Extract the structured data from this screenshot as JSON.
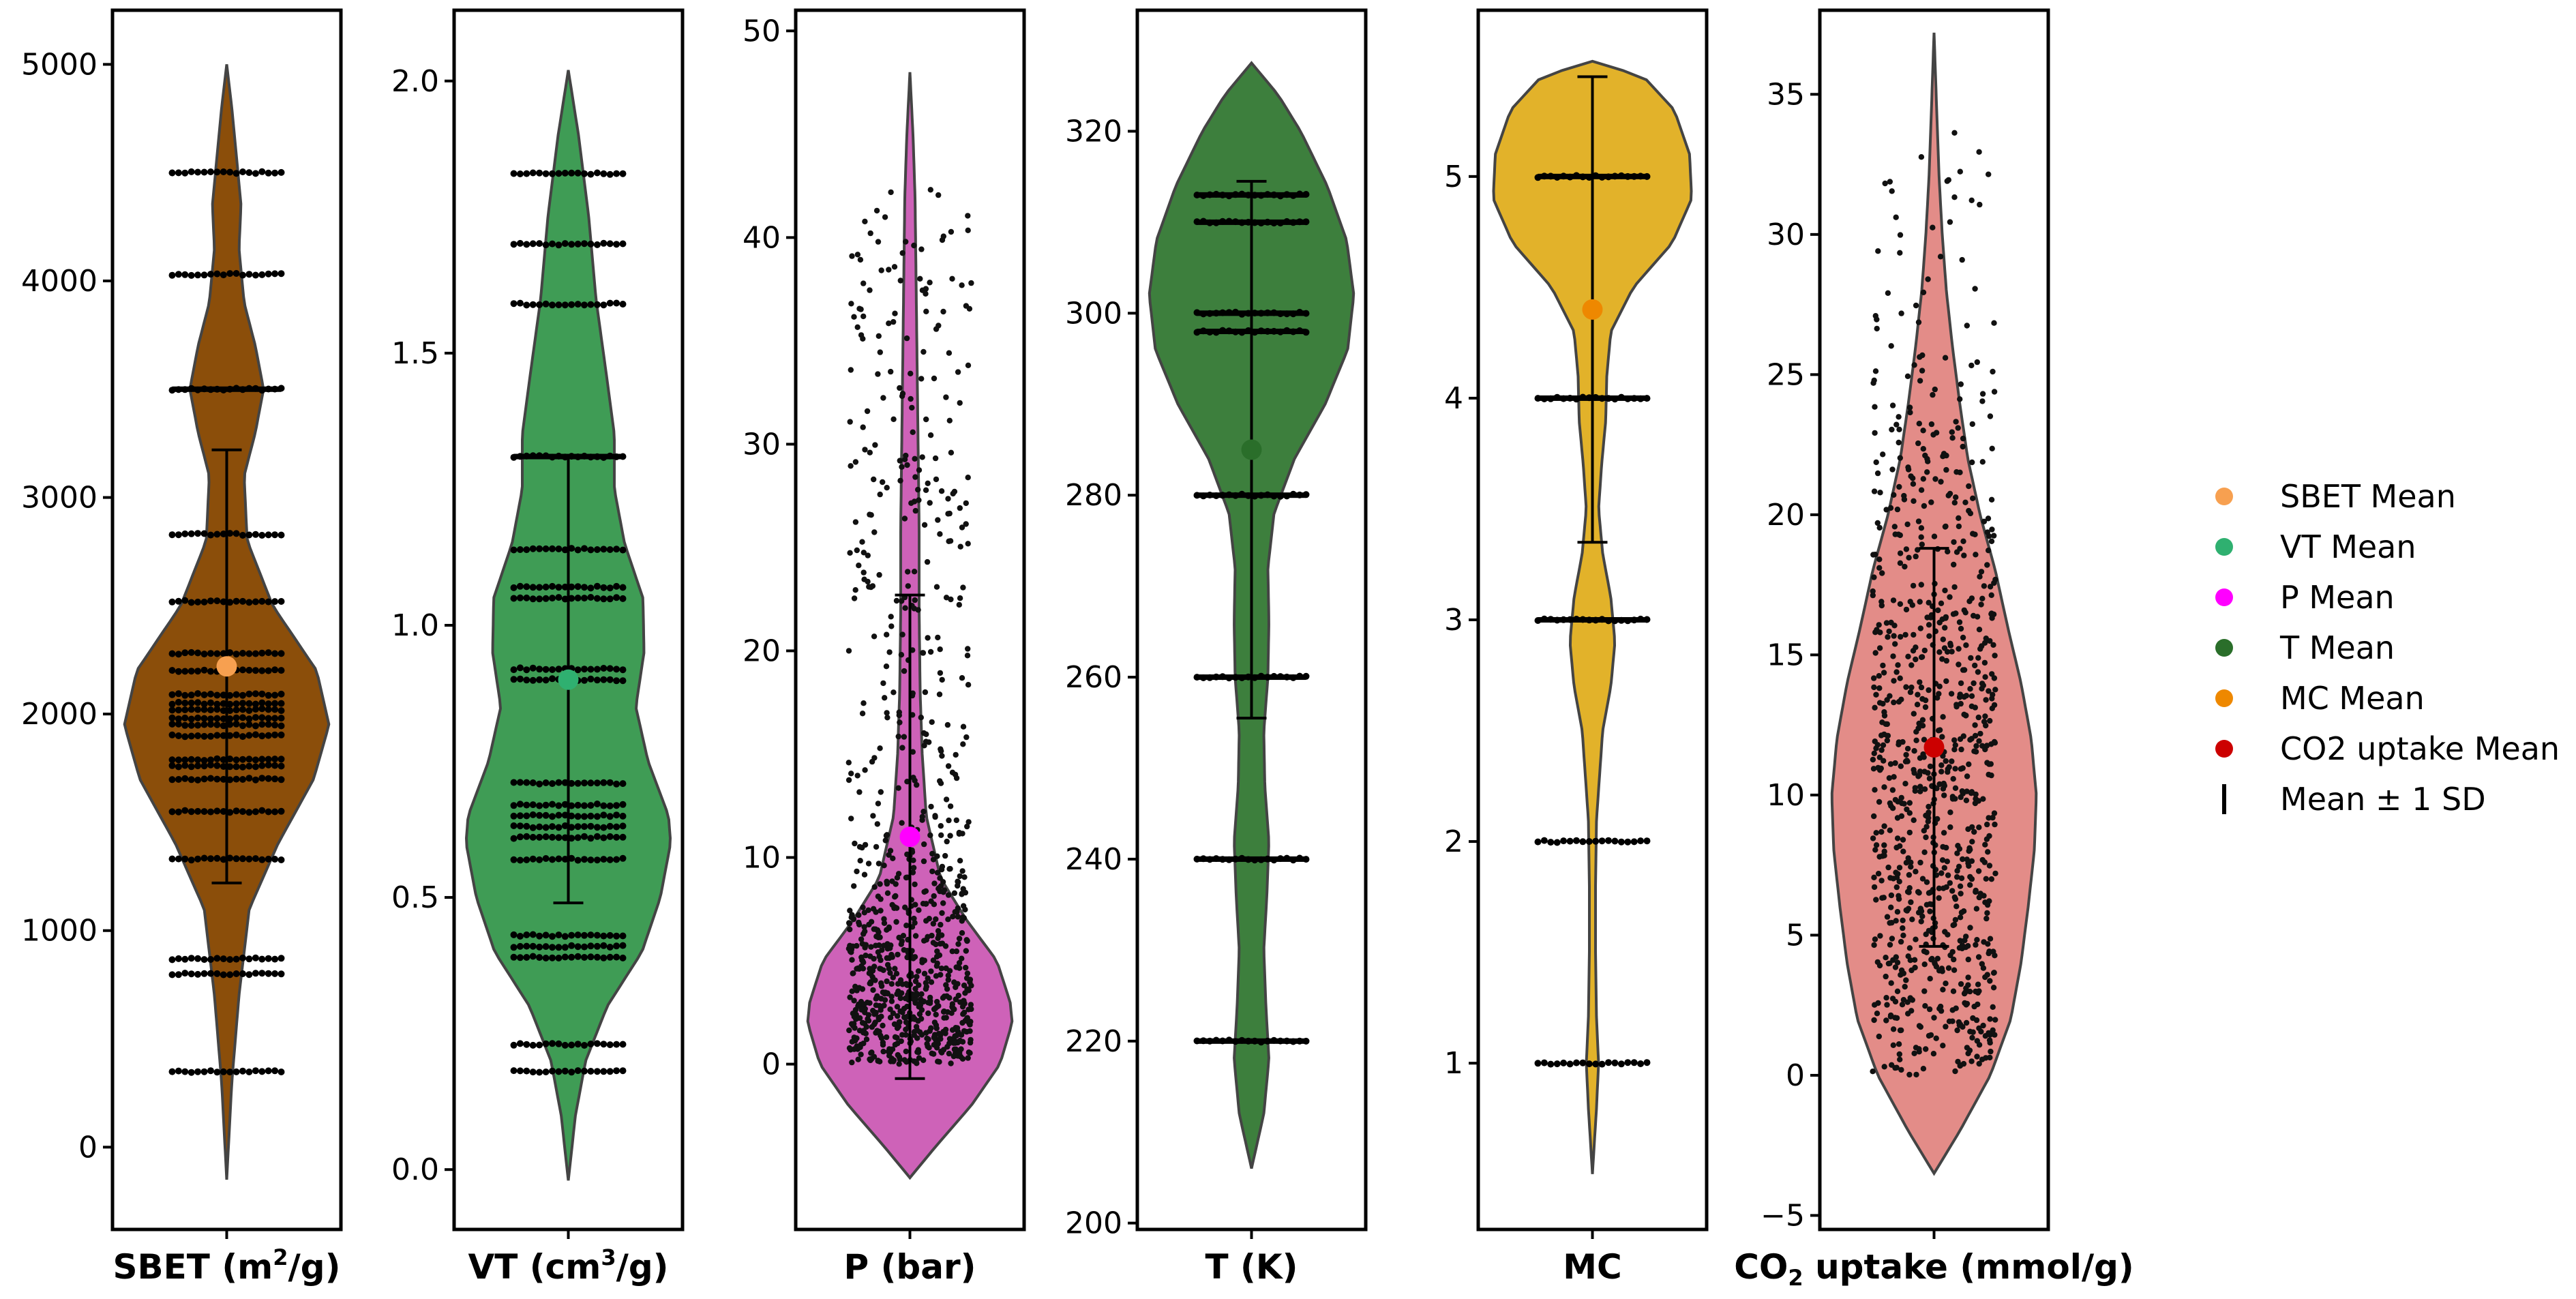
{
  "chart_data": [
    {
      "type": "violin",
      "xlabel": "SBET (m²/g)",
      "xlabel_parts": [
        "SBET (m",
        "2",
        "/g)"
      ],
      "ylim": [
        -380,
        5250
      ],
      "yticks": [
        0,
        1000,
        2000,
        3000,
        4000,
        5000
      ],
      "ytick_labels": [
        "0",
        "1000",
        "2000",
        "3000",
        "4000",
        "5000"
      ],
      "color": "#8B4E0A",
      "mean_color": "#F7A050",
      "mean": 2220,
      "sd": 1000,
      "kde": {
        "y": [
          -150,
          300,
          700,
          1100,
          1400,
          1700,
          1950,
          2200,
          2500,
          2800,
          3100,
          3300,
          3500,
          3700,
          3900,
          4150,
          4350,
          4550,
          4800,
          5000
        ],
        "w": [
          0,
          0.05,
          0.12,
          0.22,
          0.5,
          0.85,
          1.0,
          0.88,
          0.45,
          0.2,
          0.17,
          0.28,
          0.36,
          0.28,
          0.17,
          0.12,
          0.14,
          0.1,
          0.05,
          0
        ]
      },
      "data_levels": [
        350,
        800,
        870,
        1330,
        1550,
        1700,
        1760,
        1790,
        1900,
        1950,
        1980,
        2020,
        2050,
        2090,
        2200,
        2280,
        2520,
        2830,
        3500,
        4030,
        4500
      ],
      "thick_levels": [
        3500
      ]
    },
    {
      "type": "violin",
      "xlabel": "VT (cm³/g)",
      "xlabel_parts": [
        "VT (cm",
        "3",
        "/g)"
      ],
      "ylim": [
        -0.11,
        2.13
      ],
      "yticks": [
        0.0,
        0.5,
        1.0,
        1.5,
        2.0
      ],
      "ytick_labels": [
        "0.0",
        "0.5",
        "1.0",
        "1.5",
        "2.0"
      ],
      "color": "#3F9C55",
      "mean_color": "#2FB070",
      "mean": 0.9,
      "sd": 0.41,
      "kde": {
        "y": [
          -0.02,
          0.1,
          0.2,
          0.3,
          0.4,
          0.5,
          0.6,
          0.65,
          0.75,
          0.85,
          0.95,
          1.05,
          1.15,
          1.25,
          1.35,
          1.45,
          1.6,
          1.75,
          1.9,
          2.02
        ],
        "w": [
          0,
          0.07,
          0.17,
          0.38,
          0.72,
          0.9,
          1.0,
          0.98,
          0.78,
          0.66,
          0.74,
          0.73,
          0.55,
          0.45,
          0.45,
          0.38,
          0.27,
          0.2,
          0.1,
          0
        ]
      },
      "data_levels": [
        0.18,
        0.23,
        0.39,
        0.41,
        0.43,
        0.57,
        0.61,
        0.63,
        0.65,
        0.67,
        0.71,
        0.9,
        0.92,
        1.05,
        1.07,
        1.14,
        1.31,
        1.59,
        1.7,
        1.83
      ],
      "thick_levels": [
        0.4,
        0.66,
        0.91,
        1.06,
        1.31
      ]
    },
    {
      "type": "violin",
      "xlabel": "P (bar)",
      "xlabel_parts": [
        "P (bar)",
        "",
        ""
      ],
      "ylim": [
        -8,
        51
      ],
      "yticks": [
        0,
        10,
        20,
        30,
        40,
        50
      ],
      "ytick_labels": [
        "0",
        "10",
        "20",
        "30",
        "40",
        "50"
      ],
      "color": "#CE62B8",
      "mean_color": "#FF00FF",
      "mean": 11,
      "sd": 11.7,
      "kde": {
        "y": [
          -5.5,
          -4,
          -2,
          0,
          2,
          3,
          5,
          7,
          9,
          12,
          15,
          18,
          22,
          26,
          30,
          34,
          38,
          42,
          45,
          48
        ],
        "w": [
          0,
          0.25,
          0.6,
          0.88,
          1.0,
          0.98,
          0.85,
          0.55,
          0.3,
          0.16,
          0.12,
          0.1,
          0.09,
          0.09,
          0.08,
          0.07,
          0.06,
          0.05,
          0.03,
          0
        ]
      },
      "scatter": true,
      "scatter_range": [
        0,
        42.5
      ],
      "thick_levels": []
    },
    {
      "type": "violin",
      "xlabel": "T (K)",
      "xlabel_parts": [
        "T (K)",
        "",
        ""
      ],
      "ylim": [
        199.3,
        333.3
      ],
      "yticks": [
        200,
        220,
        240,
        260,
        280,
        300,
        320
      ],
      "ytick_labels": [
        "200",
        "220",
        "240",
        "260",
        "280",
        "300",
        "320"
      ],
      "color": "#3D7F3D",
      "mean_color": "#2A6E2A",
      "mean": 285,
      "sd": 29.5,
      "kde": {
        "y": [
          206,
          212,
          218,
          224,
          230,
          236,
          242,
          248,
          254,
          260,
          266,
          272,
          278,
          284,
          290,
          296,
          302,
          308,
          314,
          320,
          324,
          327.5
        ],
        "w": [
          0,
          0.12,
          0.17,
          0.14,
          0.12,
          0.15,
          0.17,
          0.13,
          0.12,
          0.16,
          0.17,
          0.16,
          0.22,
          0.42,
          0.72,
          0.94,
          1.0,
          0.93,
          0.74,
          0.48,
          0.26,
          0
        ]
      },
      "data_levels": [
        220,
        240,
        260,
        280,
        298,
        300,
        310,
        313
      ],
      "thick_levels": [
        220,
        240,
        260,
        280,
        298,
        300,
        310,
        313
      ]
    },
    {
      "type": "violin",
      "xlabel": "MC",
      "xlabel_parts": [
        "MC",
        "",
        ""
      ],
      "ylim": [
        0.25,
        5.75
      ],
      "yticks": [
        1,
        2,
        3,
        4,
        5
      ],
      "ytick_labels": [
        "1",
        "2",
        "3",
        "4",
        "5"
      ],
      "color": "#E2B22A",
      "mean_color": "#EE8800",
      "mean": 4.4,
      "sd": 1.05,
      "kde": {
        "y": [
          0.5,
          0.8,
          1.0,
          1.2,
          1.5,
          1.8,
          2.1,
          2.5,
          2.7,
          2.9,
          3.1,
          3.3,
          3.5,
          3.7,
          3.9,
          4.1,
          4.3,
          4.5,
          4.7,
          4.9,
          5.1,
          5.3,
          5.45,
          5.52
        ],
        "w": [
          0,
          0.04,
          0.06,
          0.04,
          0.03,
          0.03,
          0.04,
          0.1,
          0.18,
          0.22,
          0.18,
          0.1,
          0.06,
          0.09,
          0.13,
          0.14,
          0.18,
          0.4,
          0.78,
          0.97,
          0.95,
          0.8,
          0.5,
          0
        ]
      },
      "data_levels": [
        1,
        2,
        3,
        4,
        5
      ],
      "thick_levels": [
        3,
        4,
        5
      ]
    },
    {
      "type": "violin",
      "xlabel": "CO₂ uptake (mmol/g)",
      "xlabel_parts": [
        "CO",
        "2",
        " uptake (mmol/g)"
      ],
      "xlabel_sub": true,
      "ylim": [
        -5.5,
        38
      ],
      "yticks": [
        -5,
        0,
        5,
        10,
        15,
        20,
        25,
        30,
        35
      ],
      "ytick_labels": [
        "−5",
        "0",
        "5",
        "10",
        "15",
        "20",
        "25",
        "30",
        "35"
      ],
      "color": "#E38C88",
      "mean_color": "#CC0000",
      "mean": 11.7,
      "sd": 7.1,
      "kde": {
        "y": [
          -3.5,
          -2,
          0,
          2,
          4,
          6,
          8,
          10,
          12,
          14,
          16,
          18,
          20,
          22,
          24,
          26,
          28,
          30,
          32,
          34,
          37.2
        ],
        "w": [
          0,
          0.25,
          0.55,
          0.75,
          0.85,
          0.92,
          0.98,
          1.0,
          0.95,
          0.85,
          0.72,
          0.6,
          0.45,
          0.33,
          0.25,
          0.18,
          0.12,
          0.08,
          0.05,
          0.03,
          0
        ]
      },
      "scatter": true,
      "scatter_range": [
        0,
        34
      ],
      "thick_levels": []
    }
  ],
  "legend": [
    {
      "label": "SBET Mean",
      "color": "#F7A050",
      "kind": "dot"
    },
    {
      "label": "VT Mean",
      "color": "#2FB070",
      "kind": "dot"
    },
    {
      "label": "P Mean",
      "color": "#FF00FF",
      "kind": "dot"
    },
    {
      "label": "T Mean",
      "color": "#2A6E2A",
      "kind": "dot"
    },
    {
      "label": "MC Mean",
      "color": "#EE8800",
      "kind": "dot"
    },
    {
      "label": "CO2 uptake Mean",
      "color": "#CC0000",
      "kind": "dot"
    },
    {
      "label": "Mean ± 1 SD",
      "color": "#000000",
      "kind": "bar"
    }
  ]
}
